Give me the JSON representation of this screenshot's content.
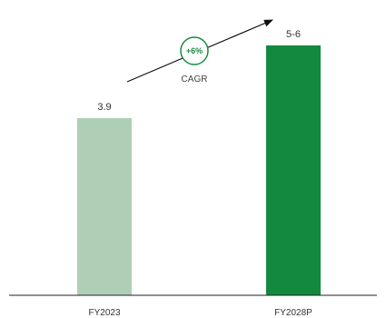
{
  "chart_data": {
    "type": "bar",
    "categories": [
      "FY2023",
      "FY2028P"
    ],
    "values": [
      3.9,
      5.5
    ],
    "value_labels": [
      "3.9",
      "5-6"
    ],
    "colors": [
      "#aecfb5",
      "#13883f"
    ],
    "ylim": [
      0,
      5.9
    ],
    "grid": false,
    "legend": "none",
    "annotation": {
      "badge": "+6%",
      "label": "CAGR",
      "badge_color": "#1a8a43",
      "arrow_color": "#111111"
    }
  }
}
